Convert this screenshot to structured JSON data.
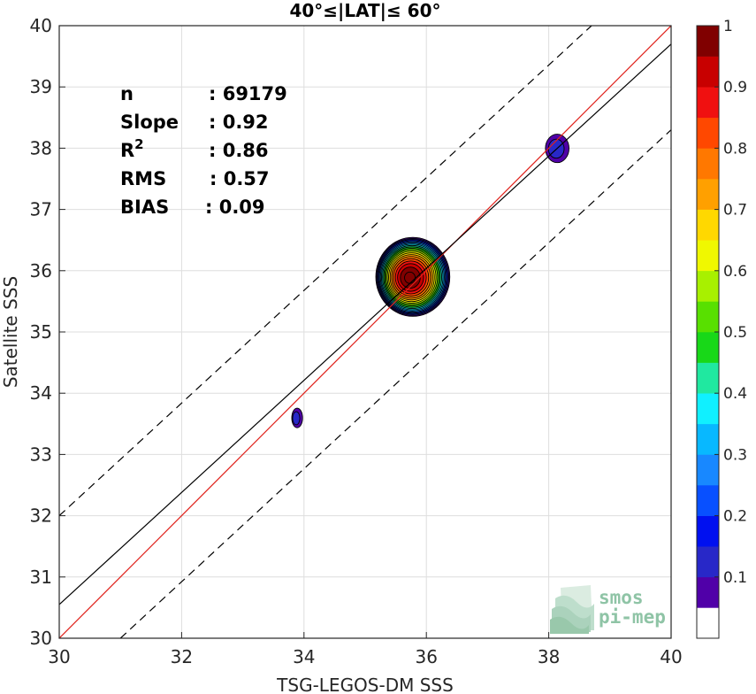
{
  "chart_data": {
    "type": "contour",
    "title": "40°≤|LAT|≤ 60°",
    "xlabel": "TSG-LEGOS-DM SSS",
    "ylabel": "Satellite SSS",
    "xlim": [
      30,
      40
    ],
    "ylim": [
      30,
      40
    ],
    "xticks": [
      "30",
      "32",
      "34",
      "36",
      "38",
      "40"
    ],
    "yticks": [
      "30",
      "31",
      "32",
      "33",
      "34",
      "35",
      "36",
      "37",
      "38",
      "39",
      "40"
    ],
    "grid": true,
    "stats": [
      {
        "label": "n",
        "sep": ": ",
        "value": "69179"
      },
      {
        "label": "Slope",
        "sep": ": ",
        "value": "0.92"
      },
      {
        "label": "R",
        "sup": "2",
        "sep": ": ",
        "value": "0.86"
      },
      {
        "label": "RMS",
        "sep": ": ",
        "value": "0.57"
      },
      {
        "label": "BIAS",
        "sep": ": ",
        "value": "0.09"
      }
    ],
    "lines": [
      {
        "role": "identity",
        "color": "#e0201a",
        "style": "solid",
        "points": [
          [
            30,
            30
          ],
          [
            40,
            40
          ]
        ]
      },
      {
        "role": "regression",
        "color": "#000000",
        "style": "solid",
        "points": [
          [
            30,
            30.55
          ],
          [
            40,
            39.7
          ]
        ]
      },
      {
        "role": "upper-bound",
        "color": "#000000",
        "style": "dashed",
        "points": [
          [
            30,
            32
          ],
          [
            38.7,
            40
          ]
        ]
      },
      {
        "role": "lower-bound",
        "color": "#000000",
        "style": "dashed",
        "points": [
          [
            31,
            30
          ],
          [
            40,
            38.3
          ]
        ]
      }
    ],
    "density_clusters": [
      {
        "cx": 35.78,
        "cy": 35.9,
        "rx": 0.62,
        "ry": 0.66,
        "peak": 1.0
      },
      {
        "cx": 38.15,
        "cy": 38.0,
        "rx": 0.24,
        "ry": 0.29,
        "peak": 0.12
      },
      {
        "cx": 33.9,
        "cy": 33.6,
        "rx": 0.11,
        "ry": 0.2,
        "peak": 0.12
      }
    ],
    "colorbar": {
      "ticks": [
        "0.1",
        "0.2",
        "0.3",
        "0.4",
        "0.5",
        "0.6",
        "0.7",
        "0.8",
        "0.9",
        "1"
      ],
      "levels": [
        "#ffffff",
        "#5000a8",
        "#2828c8",
        "#0010f0",
        "#0850ff",
        "#1888ff",
        "#08b8ff",
        "#10f0ff",
        "#20e8a0",
        "#18d818",
        "#58e000",
        "#a8f000",
        "#f0f800",
        "#ffd800",
        "#ffa000",
        "#ff7800",
        "#ff4800",
        "#f01010",
        "#c80000",
        "#800000"
      ]
    }
  },
  "logo": {
    "line1": "smos",
    "line2": "pi-mep"
  }
}
